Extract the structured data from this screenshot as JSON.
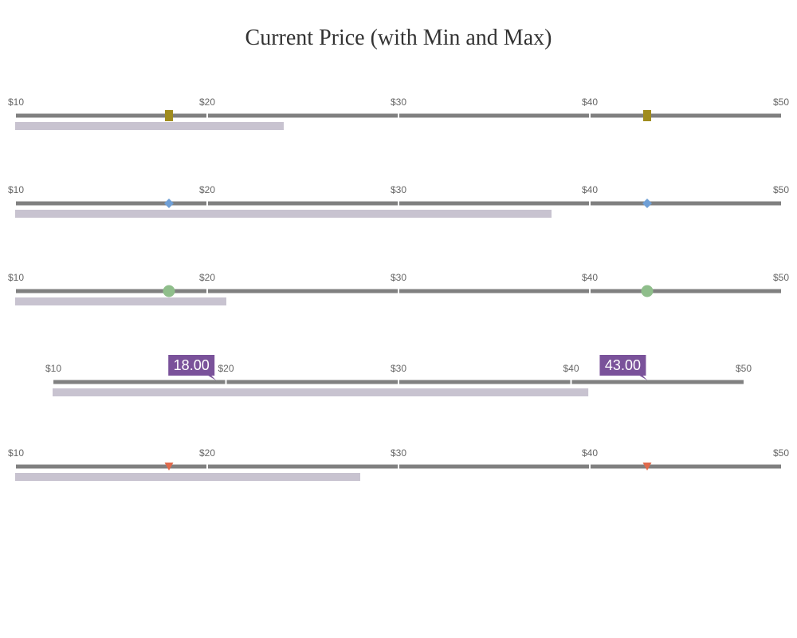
{
  "chart_data": {
    "type": "bullet-range",
    "title": "Current Price (with Min and Max)",
    "xlim": [
      10,
      50
    ],
    "ticks": [
      {
        "value": 10,
        "label": "$10"
      },
      {
        "value": 20,
        "label": "$20"
      },
      {
        "value": 30,
        "label": "$30"
      },
      {
        "value": 40,
        "label": "$40"
      },
      {
        "value": 50,
        "label": "$50"
      }
    ],
    "min": 18,
    "max": 43,
    "rows": [
      {
        "current": 24,
        "marker": "square",
        "marker_color": "#a08c1e"
      },
      {
        "current": 38,
        "marker": "diamond",
        "marker_color": "#6f9fd6"
      },
      {
        "current": 21,
        "marker": "circle",
        "marker_color": "#8fbe8b"
      },
      {
        "current": 41,
        "marker": "callout",
        "marker_color": "#7a529a",
        "min_label": "18.00",
        "max_label": "43.00"
      },
      {
        "current": 28,
        "marker": "triangle-down",
        "marker_color": "#e06a4c"
      }
    ],
    "colors": {
      "range_line": "#808080",
      "current_bar": "#c8c3d0",
      "tick_mark": "#ffffff"
    }
  }
}
